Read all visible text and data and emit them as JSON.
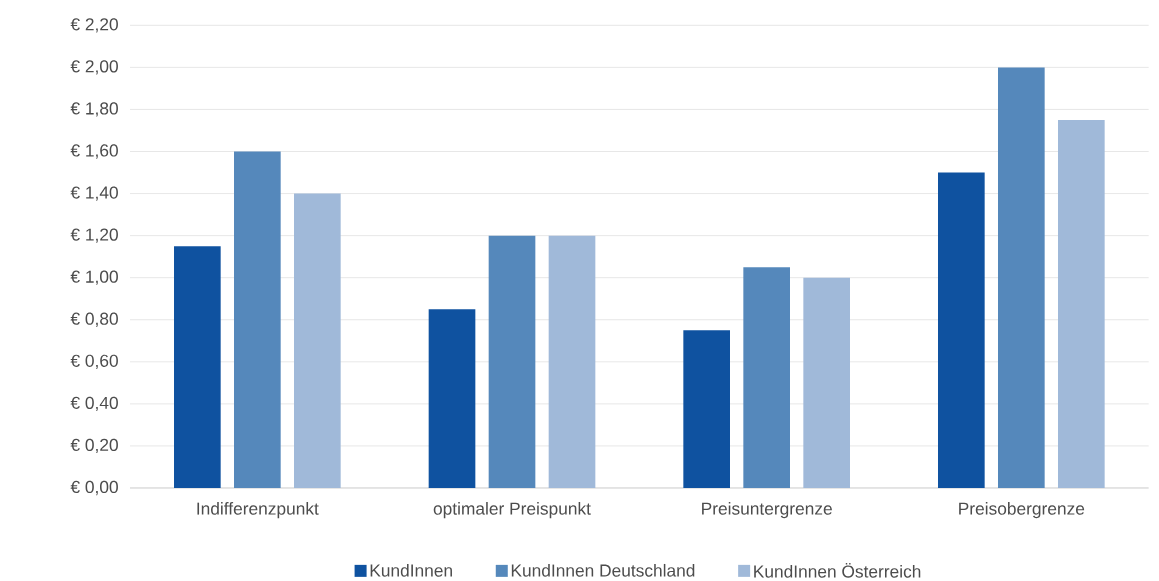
{
  "chart_data": {
    "type": "bar",
    "categories": [
      "Indifferenzpunkt",
      "optimaler Preispunkt",
      "Preisuntergrenze",
      "Preisobergrenze"
    ],
    "series": [
      {
        "name": "KundInnen",
        "color": "#0f52a0",
        "values": [
          1.15,
          0.85,
          0.75,
          1.5
        ]
      },
      {
        "name": "KundInnen Deutschland",
        "color": "#5588bb",
        "values": [
          1.6,
          1.2,
          1.05,
          2.0
        ]
      },
      {
        "name": "KundInnen Österreich",
        "color": "#a0b9d9",
        "values": [
          1.4,
          1.2,
          1.0,
          1.75
        ]
      }
    ],
    "ylim": [
      0,
      2.2
    ],
    "yticks": [
      {
        "value": 0,
        "label": "€ 0,00"
      },
      {
        "value": 0.2,
        "label": "€ 0,20"
      },
      {
        "value": 0.4,
        "label": "€ 0,40"
      },
      {
        "value": 0.6,
        "label": "€ 0,60"
      },
      {
        "value": 0.8,
        "label": "€ 0,80"
      },
      {
        "value": 1.0,
        "label": "€ 1,00"
      },
      {
        "value": 1.2,
        "label": "€ 1,20"
      },
      {
        "value": 1.4,
        "label": "€ 1,40"
      },
      {
        "value": 1.6,
        "label": "€ 1,60"
      },
      {
        "value": 1.8,
        "label": "€ 1,80"
      },
      {
        "value": 2.0,
        "label": "€ 2,00"
      },
      {
        "value": 2.2,
        "label": "€ 2,20"
      }
    ],
    "grid": "y",
    "legend": "bottom"
  }
}
